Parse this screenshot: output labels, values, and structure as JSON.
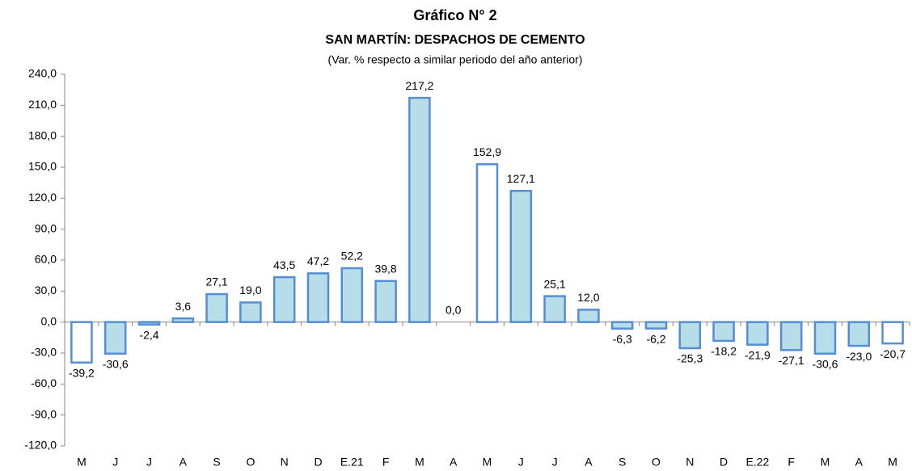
{
  "chart_data": {
    "type": "bar",
    "title": "Gráfico N° 2",
    "subtitle": "SAN MARTÍN: DESPACHOS DE CEMENTO",
    "note": "(Var. % respecto a similar periodo del año anterior)",
    "categories": [
      "M",
      "J",
      "J",
      "A",
      "S",
      "O",
      "N",
      "D",
      "E.21",
      "F",
      "M",
      "A",
      "M",
      "J",
      "J",
      "A",
      "S",
      "O",
      "N",
      "D",
      "E.22",
      "F",
      "M",
      "A",
      "M"
    ],
    "values": [
      -39.2,
      -30.6,
      -2.4,
      3.6,
      27.1,
      19.0,
      43.5,
      47.2,
      52.2,
      39.8,
      217.2,
      0.0,
      152.9,
      127.1,
      25.1,
      12.0,
      -6.3,
      -6.2,
      -25.3,
      -18.2,
      -21.9,
      -27.1,
      -30.6,
      -23.0,
      -20.7
    ],
    "value_labels": [
      "-39,2",
      "-30,6",
      "-2,4",
      "3,6",
      "27,1",
      "19,0",
      "43,5",
      "47,2",
      "52,2",
      "39,8",
      "217,2",
      "0,0",
      "152,9",
      "127,1",
      "25,1",
      "12,0",
      "-6,3",
      "-6,2",
      "-25,3",
      "-18,2",
      "-21,9",
      "-27,1",
      "-30,6",
      "-23,0",
      "-20,7"
    ],
    "colors": [
      "#ffffff",
      "#b7dde8",
      "#b7dde8",
      "#b7dde8",
      "#b7dde8",
      "#b7dde8",
      "#b7dde8",
      "#b7dde8",
      "#b7dde8",
      "#b7dde8",
      "#b7dde8",
      "#b7dde8",
      "#ffffff",
      "#b7dde8",
      "#b7dde8",
      "#b7dde8",
      "#b7dde8",
      "#b7dde8",
      "#b7dde8",
      "#b7dde8",
      "#b7dde8",
      "#b7dde8",
      "#b7dde8",
      "#b7dde8",
      "#ffffff"
    ],
    "edge_color": "#558ed5",
    "ylim": [
      -120,
      240
    ],
    "yticks": [
      {
        "value": -120,
        "label": "-120,0"
      },
      {
        "value": -90,
        "label": "-90,0"
      },
      {
        "value": -60,
        "label": "-60,0"
      },
      {
        "value": -30,
        "label": "-30,0"
      },
      {
        "value": 0,
        "label": "0,0"
      },
      {
        "value": 30,
        "label": "30,0"
      },
      {
        "value": 60,
        "label": "60,0"
      },
      {
        "value": 90,
        "label": "90,0"
      },
      {
        "value": 120,
        "label": "120,0"
      },
      {
        "value": 150,
        "label": "150,0"
      },
      {
        "value": 180,
        "label": "180,0"
      },
      {
        "value": 210,
        "label": "210,0"
      },
      {
        "value": 240,
        "label": "240,0"
      }
    ],
    "grid": false
  }
}
